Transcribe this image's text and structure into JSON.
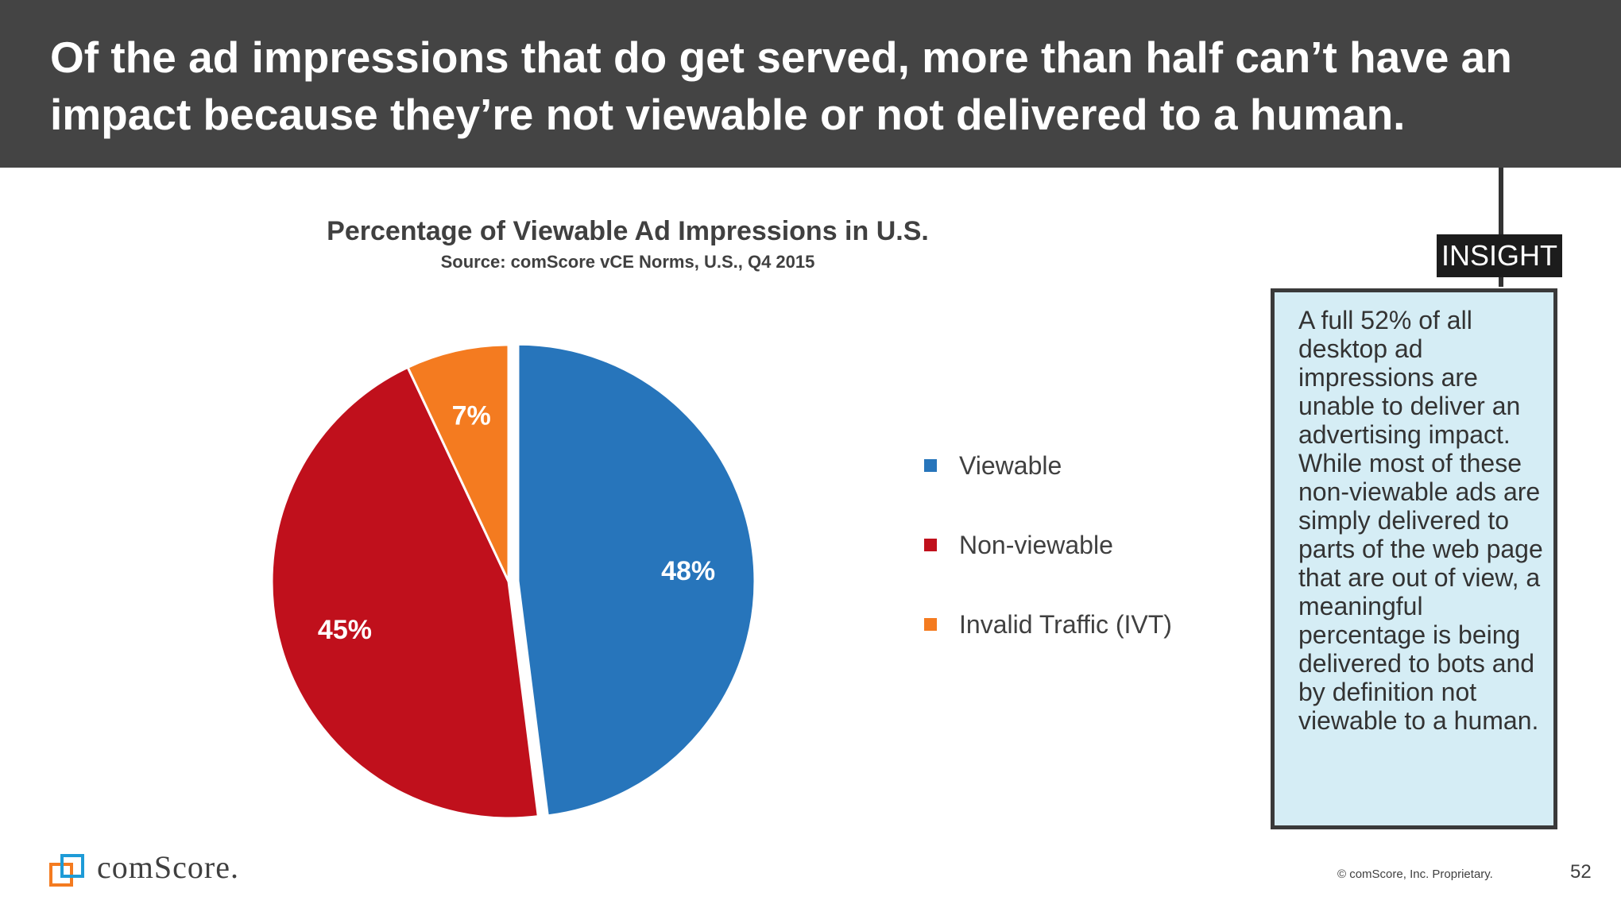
{
  "header": {
    "title": "Of the ad impressions that do get served, more than half can’t have an impact because they’re not viewable or not delivered to a human."
  },
  "chart_data": {
    "type": "pie",
    "title": "Percentage of Viewable Ad Impressions in U.S.",
    "subtitle": "Source: comScore vCE Norms, U.S., Q4 2015",
    "categories": [
      "Viewable",
      "Non-viewable",
      "Invalid Traffic (IVT)"
    ],
    "values": [
      48,
      45,
      7
    ],
    "value_labels": [
      "48%",
      "45%",
      "7%"
    ],
    "colors": [
      "#2775BB",
      "#C0101C",
      "#F47B20"
    ],
    "legend_position": "right",
    "exploded_slice": "Viewable"
  },
  "insight": {
    "tag": "INSIGHT",
    "text": "A full 52% of all desktop ad impressions are unable to deliver an advertising impact. While most of these non-viewable ads are simply delivered to parts of the web page that are out of view, a meaningful percentage is being delivered to bots and by definition not viewable to a human."
  },
  "footer": {
    "logo_text": "comScore.",
    "logo_icon": "comscore-logo-icon",
    "copyright": "© comScore, Inc. Proprietary.",
    "page_number": "52"
  }
}
